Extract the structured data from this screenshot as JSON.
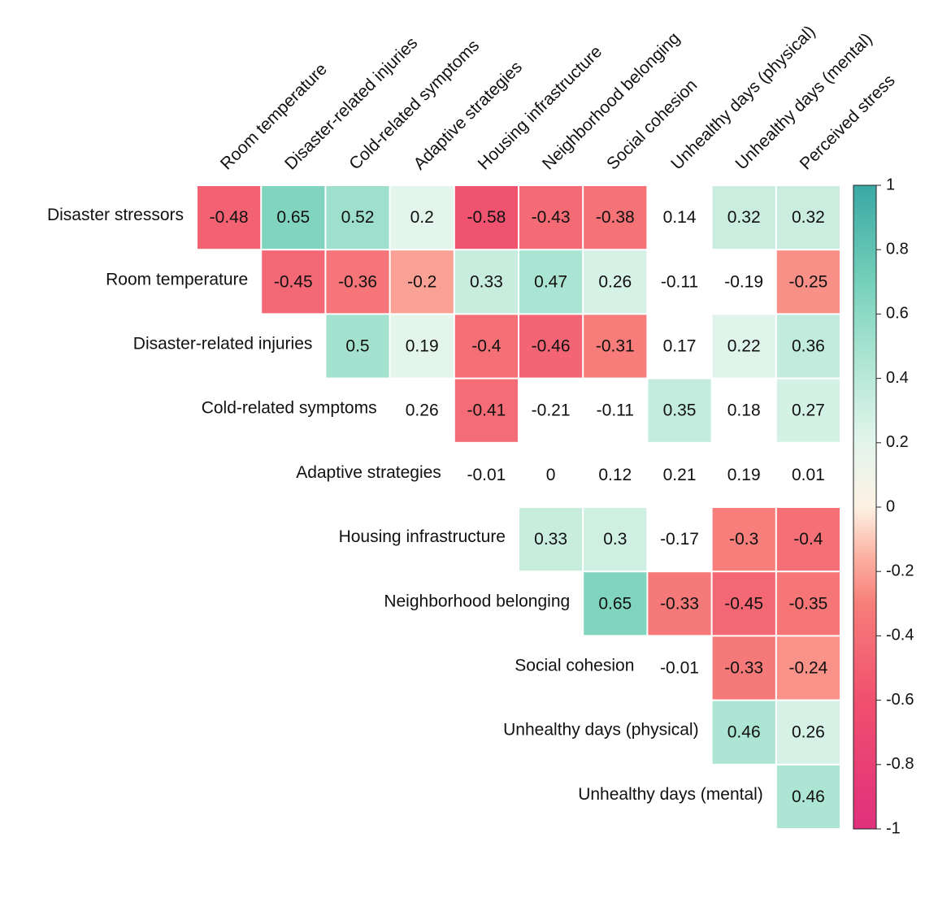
{
  "chart_data": {
    "type": "heatmap",
    "title": "",
    "xlabel": "",
    "ylabel": "",
    "rows": [
      "Disaster stressors",
      "Room temperature",
      "Disaster-related injuries",
      "Cold-related symptoms",
      "Adaptive strategies",
      "Housing infrastructure",
      "Neighborhood belonging",
      "Social cohesion",
      "Unhealthy days (physical)",
      "Unhealthy days (mental)"
    ],
    "columns": [
      "Room temperature",
      "Disaster-related injuries",
      "Cold-related symptoms",
      "Adaptive strategies",
      "Housing infrastructure",
      "Neighborhood belonging",
      "Social cohesion",
      "Unhealthy days (physical)",
      "Unhealthy days (mental)",
      "Perceived stress"
    ],
    "values": [
      [
        -0.48,
        0.65,
        0.52,
        0.2,
        -0.58,
        -0.43,
        -0.38,
        0.14,
        0.32,
        0.32
      ],
      [
        null,
        -0.45,
        -0.36,
        -0.2,
        0.33,
        0.47,
        0.26,
        -0.11,
        -0.19,
        -0.25
      ],
      [
        null,
        null,
        0.5,
        0.19,
        -0.4,
        -0.46,
        -0.31,
        0.17,
        0.22,
        0.36
      ],
      [
        null,
        null,
        null,
        0.26,
        -0.41,
        -0.21,
        -0.11,
        0.35,
        0.18,
        0.27
      ],
      [
        null,
        null,
        null,
        null,
        -0.01,
        0,
        0.12,
        0.21,
        0.19,
        0.01
      ],
      [
        null,
        null,
        null,
        null,
        null,
        0.33,
        0.3,
        -0.17,
        -0.3,
        -0.4
      ],
      [
        null,
        null,
        null,
        null,
        null,
        null,
        0.65,
        -0.33,
        -0.45,
        -0.35
      ],
      [
        null,
        null,
        null,
        null,
        null,
        null,
        null,
        -0.01,
        -0.33,
        -0.24
      ],
      [
        null,
        null,
        null,
        null,
        null,
        null,
        null,
        null,
        0.46,
        0.26
      ],
      [
        null,
        null,
        null,
        null,
        null,
        null,
        null,
        null,
        null,
        0.46
      ]
    ],
    "colored": [
      [
        true,
        true,
        true,
        true,
        true,
        true,
        true,
        false,
        true,
        true
      ],
      [
        false,
        true,
        true,
        true,
        true,
        true,
        true,
        false,
        false,
        true
      ],
      [
        false,
        false,
        true,
        true,
        true,
        true,
        true,
        false,
        true,
        true
      ],
      [
        false,
        false,
        false,
        false,
        true,
        false,
        false,
        true,
        false,
        true
      ],
      [
        false,
        false,
        false,
        false,
        false,
        false,
        false,
        false,
        false,
        false
      ],
      [
        false,
        false,
        false,
        false,
        false,
        true,
        true,
        false,
        true,
        true
      ],
      [
        false,
        false,
        false,
        false,
        false,
        false,
        true,
        true,
        true,
        true
      ],
      [
        false,
        false,
        false,
        false,
        false,
        false,
        false,
        false,
        true,
        true
      ],
      [
        false,
        false,
        false,
        false,
        false,
        false,
        false,
        false,
        true,
        true
      ],
      [
        false,
        false,
        false,
        false,
        false,
        false,
        false,
        false,
        false,
        true
      ]
    ],
    "color_range": [
      -1,
      1
    ],
    "colorbar_ticks": [
      "1",
      "0.8",
      "0.6",
      "0.4",
      "0.2",
      "0",
      "-0.2",
      "-0.4",
      "-0.6",
      "-0.8",
      "-1"
    ],
    "colorscale": [
      {
        "value": -1,
        "color": "#E0307D"
      },
      {
        "value": -0.6,
        "color": "#F0506E"
      },
      {
        "value": -0.3,
        "color": "#F77E7A"
      },
      {
        "value": -0.15,
        "color": "#FCB3A3"
      },
      {
        "value": 0,
        "color": "#FDF2E4"
      },
      {
        "value": 0.2,
        "color": "#E3F5EC"
      },
      {
        "value": 0.5,
        "color": "#A4E2CF"
      },
      {
        "value": 0.7,
        "color": "#75D0BA"
      },
      {
        "value": 1,
        "color": "#3AA8A4"
      }
    ],
    "grid": false,
    "legend": "colorbar-right"
  }
}
